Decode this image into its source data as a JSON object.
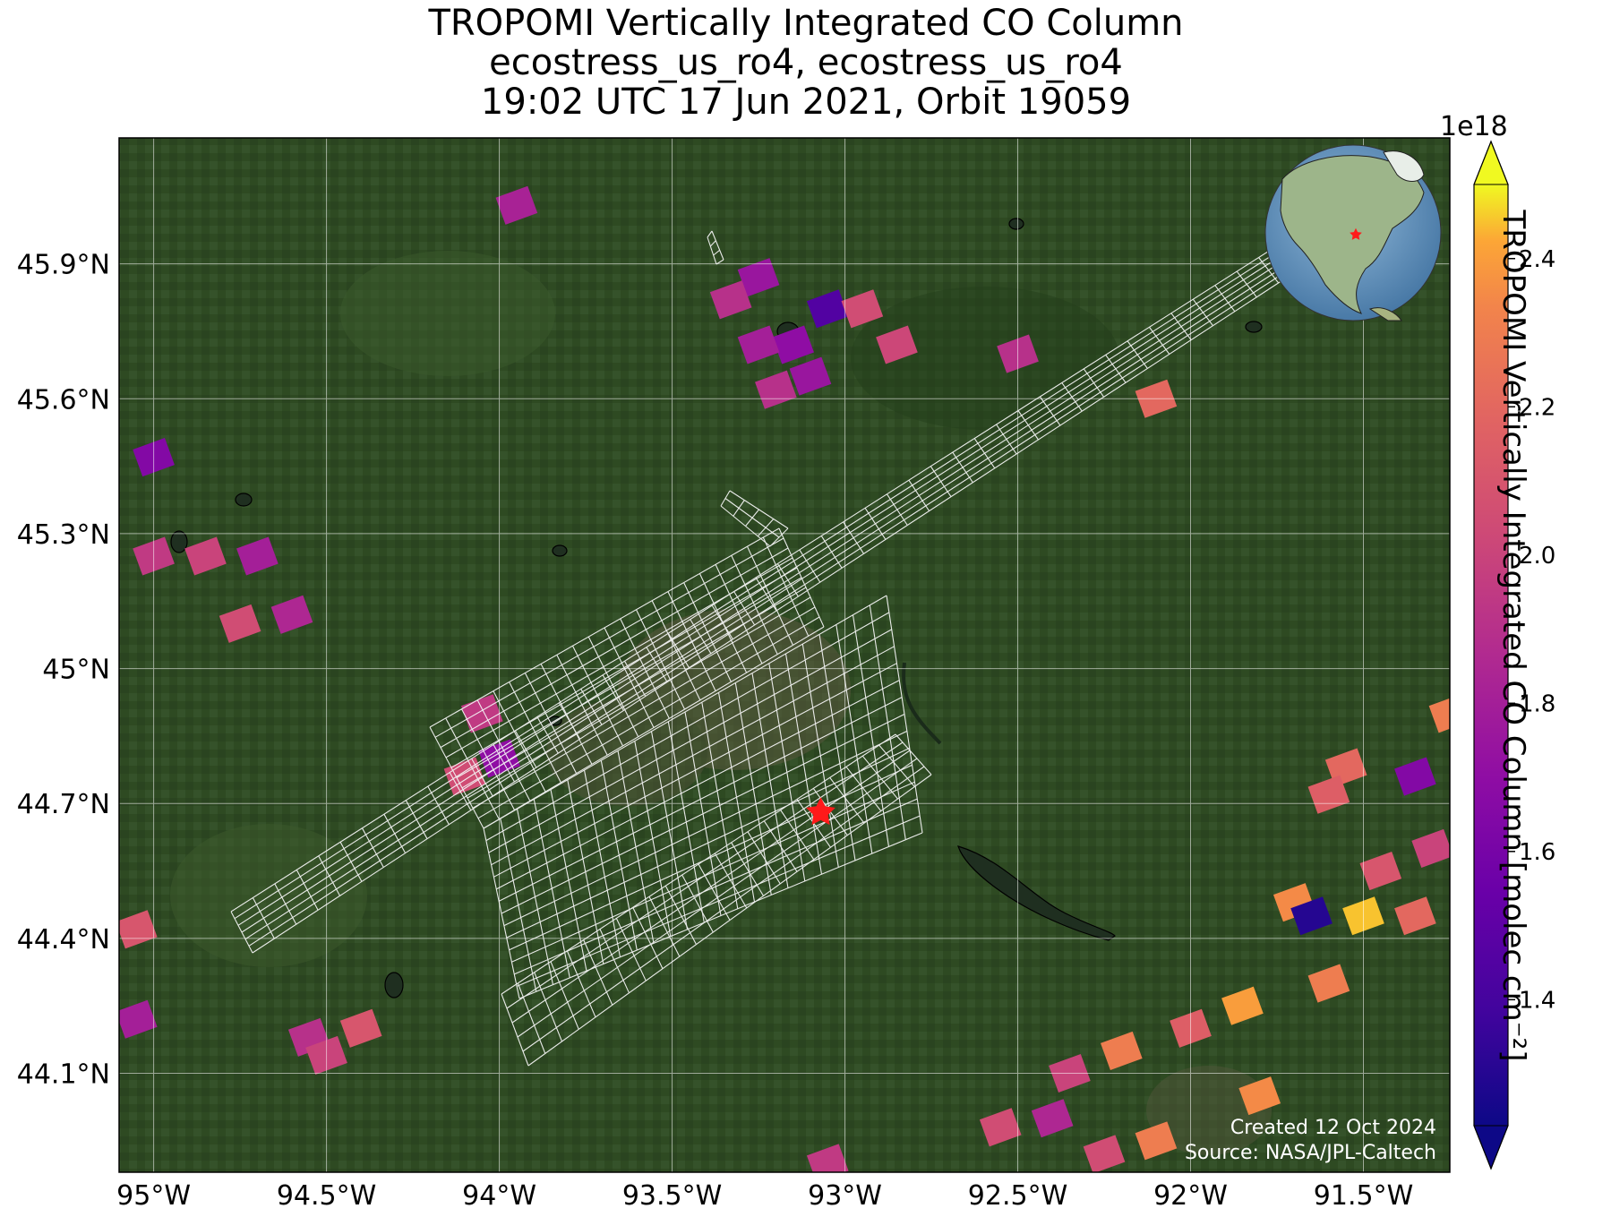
{
  "title": {
    "line1": "TROPOMI Vertically Integrated CO Column",
    "line2": "ecostress_us_ro4, ecostress_us_ro4",
    "line3": "19:02 UTC 17 Jun 2021, Orbit 19059"
  },
  "map": {
    "basemap": "satellite imagery (green farmland)",
    "extent": {
      "lon": [
        -95.1,
        -91.25
      ],
      "lat": [
        43.88,
        46.18
      ]
    },
    "lon_ticks": [
      "95°W",
      "94.5°W",
      "94°W",
      "93.5°W",
      "93°W",
      "92.5°W",
      "92°W",
      "91.5°W"
    ],
    "lat_ticks": [
      "45.9°N",
      "45.6°N",
      "45.3°N",
      "45°N",
      "44.7°N",
      "44.4°N",
      "44.1°N"
    ],
    "target_marker": {
      "lon": -93.07,
      "lat": 44.68,
      "symbol": "red-star"
    },
    "footprint_color": "#ffffff",
    "inset_globe": {
      "content": "globe centred on North America",
      "marker": "red-star"
    },
    "credit_line1": "Created 12 Oct 2024",
    "credit_line2": "Source: NASA/JPL-Caltech"
  },
  "colorbar": {
    "exponent_label": "1e18",
    "title": "TROPOMI Vertically Integrated CO Column [molec cm⁻²]",
    "ticks": [
      "1.4",
      "1.6",
      "1.8",
      "2.0",
      "2.2",
      "2.4"
    ],
    "range": [
      1.23,
      2.5
    ],
    "colormap": "plasma",
    "extend": "both"
  },
  "chart_data": {
    "type": "heatmap",
    "units": "1e18 molec cm⁻²",
    "note": "approximate TROPOMI pixel values (lon, lat, value)",
    "pixels": [
      [
        -93.95,
        46.03,
        1.82
      ],
      [
        -93.25,
        45.87,
        1.75
      ],
      [
        -93.33,
        45.82,
        1.9
      ],
      [
        -93.05,
        45.8,
        1.45
      ],
      [
        -92.95,
        45.8,
        2.05
      ],
      [
        -93.15,
        45.72,
        1.7
      ],
      [
        -92.85,
        45.72,
        2.02
      ],
      [
        -93.25,
        45.72,
        1.8
      ],
      [
        -93.1,
        45.65,
        1.75
      ],
      [
        -93.2,
        45.62,
        1.9
      ],
      [
        -92.5,
        45.7,
        1.9
      ],
      [
        -92.1,
        45.6,
        2.2
      ],
      [
        -95.0,
        45.47,
        1.65
      ],
      [
        -95.0,
        45.25,
        1.95
      ],
      [
        -94.85,
        45.25,
        2.0
      ],
      [
        -94.7,
        45.25,
        1.8
      ],
      [
        -94.75,
        45.1,
        2.05
      ],
      [
        -94.6,
        45.12,
        1.85
      ],
      [
        -94.05,
        44.9,
        1.95
      ],
      [
        -94.0,
        44.8,
        1.7
      ],
      [
        -94.1,
        44.76,
        2.05
      ],
      [
        -95.05,
        44.42,
        2.1
      ],
      [
        -95.05,
        44.22,
        1.8
      ],
      [
        -94.55,
        44.18,
        1.9
      ],
      [
        -94.4,
        44.2,
        2.1
      ],
      [
        -94.5,
        44.14,
        2.0
      ],
      [
        -91.55,
        44.78,
        2.2
      ],
      [
        -91.6,
        44.72,
        2.15
      ],
      [
        -91.35,
        44.76,
        1.65
      ],
      [
        -91.7,
        44.48,
        2.35
      ],
      [
        -91.65,
        44.45,
        1.3
      ],
      [
        -91.5,
        44.45,
        2.45
      ],
      [
        -91.45,
        44.55,
        2.1
      ],
      [
        -91.35,
        44.45,
        2.2
      ],
      [
        -91.6,
        44.3,
        2.3
      ],
      [
        -91.85,
        44.25,
        2.4
      ],
      [
        -92.0,
        44.2,
        2.15
      ],
      [
        -92.2,
        44.15,
        2.3
      ],
      [
        -92.35,
        44.1,
        2.0
      ],
      [
        -91.8,
        44.05,
        2.35
      ],
      [
        -92.4,
        44.0,
        1.85
      ],
      [
        -92.1,
        43.95,
        2.3
      ],
      [
        -92.25,
        43.92,
        2.05
      ],
      [
        -91.25,
        44.9,
        2.3
      ],
      [
        -91.3,
        44.6,
        2.0
      ],
      [
        -92.55,
        43.98,
        2.05
      ],
      [
        -93.05,
        43.9,
        1.95
      ]
    ]
  }
}
